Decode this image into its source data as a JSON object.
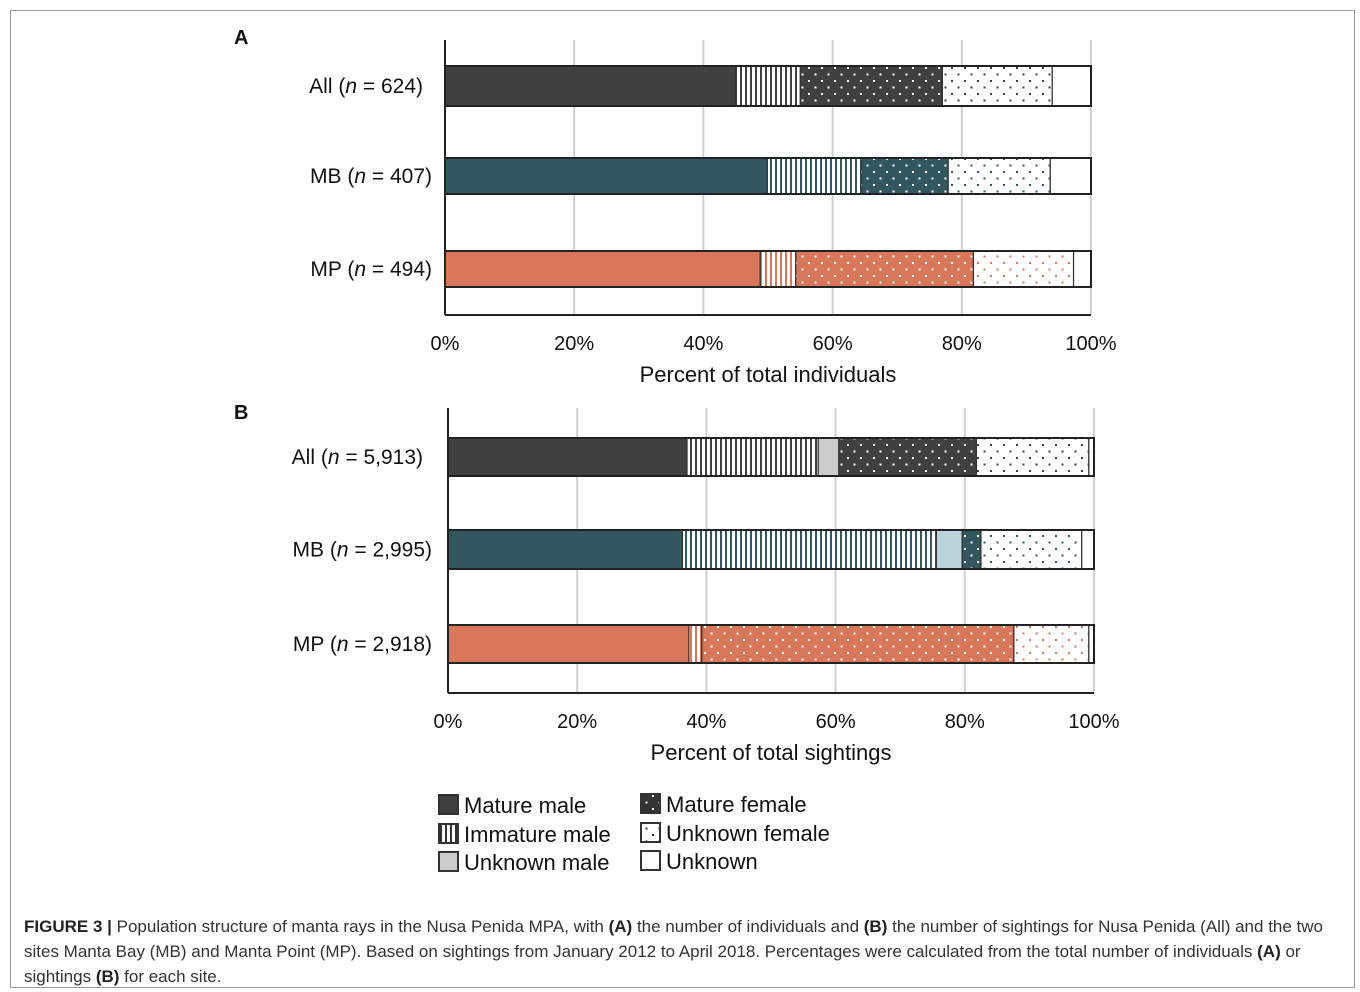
{
  "colors": {
    "all": "#404040",
    "mb": "#33575f",
    "mp": "#d9775a",
    "unknown_male_mb": "#b9d3d8",
    "unknown_male_default": "#cccccc",
    "axis": "#222222",
    "grid": "#d0d0d0"
  },
  "legend": {
    "items": [
      {
        "key": "mature_male",
        "label": "Mature male"
      },
      {
        "key": "immature_male",
        "label": "Immature male"
      },
      {
        "key": "unknown_male",
        "label": "Unknown male"
      },
      {
        "key": "mature_female",
        "label": "Mature female"
      },
      {
        "key": "unknown_female",
        "label": "Unknown female"
      },
      {
        "key": "unknown",
        "label": "Unknown"
      }
    ]
  },
  "caption": {
    "lead": "FIGURE 3 |",
    "t1": " Population structure of manta rays in the Nusa Penida MPA, with ",
    "b1": "(A)",
    "t2": " the number of individuals and ",
    "b2": "(B)",
    "t3": " the number of sightings for Nusa Penida (All) and the two sites Manta Bay (MB) and Manta Point (MP). Based on sightings from January 2012 to April 2018. Percentages were calculated from the total number of individuals ",
    "b3": "(A)",
    "t4": " or sightings ",
    "b4": "(B)",
    "t5": " for each site."
  },
  "chart_data": [
    {
      "panel": "A",
      "type": "bar",
      "orientation": "horizontal",
      "stacked": true,
      "xlabel": "Percent of total individuals",
      "xlim": [
        0,
        100
      ],
      "xticks": [
        "0%",
        "20%",
        "40%",
        "60%",
        "80%",
        "100%"
      ],
      "grid": "vertical",
      "legend_position": "bottom",
      "categories": [
        {
          "site": "All",
          "n_text": "624",
          "color_key": "all"
        },
        {
          "site": "MB",
          "n_text": "407",
          "color_key": "mb"
        },
        {
          "site": "MP",
          "n_text": "494",
          "color_key": "mp"
        }
      ],
      "series": [
        {
          "key": "mature_male",
          "values": [
            45,
            49.9,
            48.8
          ]
        },
        {
          "key": "immature_male",
          "values": [
            10,
            14.5,
            5.5
          ]
        },
        {
          "key": "unknown_male",
          "values": [
            0,
            0,
            0
          ]
        },
        {
          "key": "mature_female",
          "values": [
            22,
            13.5,
            27.5
          ]
        },
        {
          "key": "unknown_female",
          "values": [
            17,
            15.8,
            15.5
          ]
        },
        {
          "key": "unknown",
          "values": [
            6,
            6.3,
            2.7
          ]
        }
      ]
    },
    {
      "panel": "B",
      "type": "bar",
      "orientation": "horizontal",
      "stacked": true,
      "xlabel": "Percent of total sightings",
      "xlim": [
        0,
        100
      ],
      "xticks": [
        "0%",
        "20%",
        "40%",
        "60%",
        "80%",
        "100%"
      ],
      "grid": "vertical",
      "legend_position": "bottom",
      "categories": [
        {
          "site": "All",
          "n_text": "5,913",
          "color_key": "all"
        },
        {
          "site": "MB",
          "n_text": "2,995",
          "color_key": "mb"
        },
        {
          "site": "MP",
          "n_text": "2,918",
          "color_key": "mp"
        }
      ],
      "series": [
        {
          "key": "mature_male",
          "values": [
            37,
            36.3,
            37.3
          ]
        },
        {
          "key": "immature_male",
          "values": [
            20.3,
            39.3,
            2
          ]
        },
        {
          "key": "unknown_male",
          "values": [
            3.2,
            4,
            0
          ]
        },
        {
          "key": "mature_female",
          "values": [
            21.3,
            2.9,
            48.3
          ]
        },
        {
          "key": "unknown_female",
          "values": [
            17.4,
            15.6,
            11.6
          ]
        },
        {
          "key": "unknown",
          "values": [
            0.8,
            1.9,
            0.8
          ]
        }
      ]
    }
  ]
}
